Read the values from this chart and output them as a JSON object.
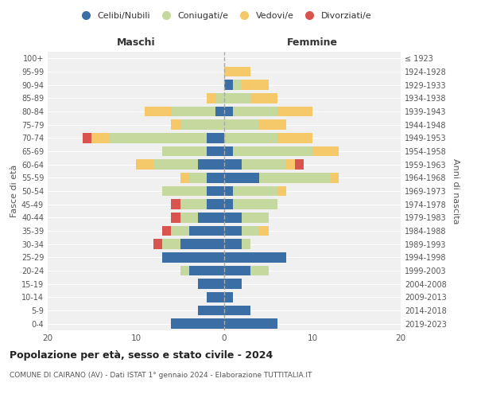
{
  "age_groups": [
    "0-4",
    "5-9",
    "10-14",
    "15-19",
    "20-24",
    "25-29",
    "30-34",
    "35-39",
    "40-44",
    "45-49",
    "50-54",
    "55-59",
    "60-64",
    "65-69",
    "70-74",
    "75-79",
    "80-84",
    "85-89",
    "90-94",
    "95-99",
    "100+"
  ],
  "birth_years": [
    "2019-2023",
    "2014-2018",
    "2009-2013",
    "2004-2008",
    "1999-2003",
    "1994-1998",
    "1989-1993",
    "1984-1988",
    "1979-1983",
    "1974-1978",
    "1969-1973",
    "1964-1968",
    "1959-1963",
    "1954-1958",
    "1949-1953",
    "1944-1948",
    "1939-1943",
    "1934-1938",
    "1929-1933",
    "1924-1928",
    "≤ 1923"
  ],
  "male": {
    "celibi": [
      6,
      3,
      2,
      3,
      4,
      7,
      5,
      4,
      3,
      2,
      2,
      2,
      3,
      2,
      2,
      0,
      1,
      0,
      0,
      0,
      0
    ],
    "coniugati": [
      0,
      0,
      0,
      0,
      1,
      0,
      2,
      2,
      2,
      3,
      5,
      2,
      5,
      5,
      11,
      5,
      5,
      1,
      0,
      0,
      0
    ],
    "vedovi": [
      0,
      0,
      0,
      0,
      0,
      0,
      0,
      0,
      0,
      0,
      0,
      1,
      2,
      0,
      2,
      1,
      3,
      1,
      0,
      0,
      0
    ],
    "divorziati": [
      0,
      0,
      0,
      0,
      0,
      0,
      1,
      1,
      1,
      1,
      0,
      0,
      0,
      0,
      1,
      0,
      0,
      0,
      0,
      0,
      0
    ]
  },
  "female": {
    "nubili": [
      6,
      3,
      1,
      2,
      3,
      7,
      2,
      2,
      2,
      1,
      1,
      4,
      2,
      1,
      0,
      0,
      1,
      0,
      1,
      0,
      0
    ],
    "coniugate": [
      0,
      0,
      0,
      0,
      2,
      0,
      1,
      2,
      3,
      5,
      5,
      8,
      5,
      9,
      6,
      4,
      5,
      3,
      1,
      0,
      0
    ],
    "vedove": [
      0,
      0,
      0,
      0,
      0,
      0,
      0,
      1,
      0,
      0,
      1,
      1,
      1,
      3,
      4,
      3,
      4,
      3,
      3,
      3,
      0
    ],
    "divorziate": [
      0,
      0,
      0,
      0,
      0,
      0,
      0,
      0,
      0,
      0,
      0,
      0,
      1,
      0,
      0,
      0,
      0,
      0,
      0,
      0,
      0
    ]
  },
  "colors": {
    "celibi": "#3A6EA5",
    "coniugati": "#C5D89D",
    "vedovi": "#F5C96A",
    "divorziati": "#D9534F"
  },
  "title": "Popolazione per età, sesso e stato civile - 2024",
  "subtitle": "COMUNE DI CAIRANO (AV) - Dati ISTAT 1° gennaio 2024 - Elaborazione TUTTITALIA.IT",
  "xlabel_left": "Maschi",
  "xlabel_right": "Femmine",
  "ylabel_left": "Fasce di età",
  "ylabel_right": "Anni di nascita",
  "xlim": 20,
  "legend_labels": [
    "Celibi/Nubili",
    "Coniugati/e",
    "Vedovi/e",
    "Divorziati/e"
  ],
  "background_color": "#ffffff"
}
